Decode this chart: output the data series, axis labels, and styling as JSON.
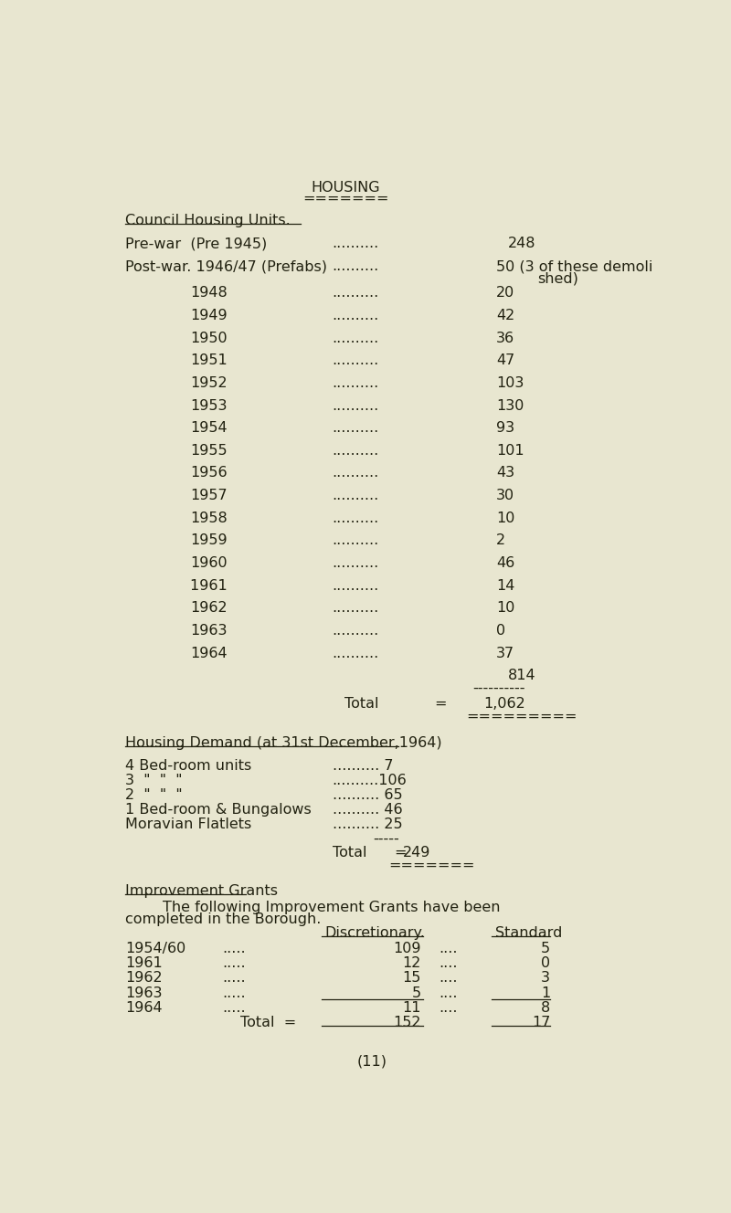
{
  "bg_color": "#e8e6d0",
  "text_color": "#222211",
  "font_family": "Courier New",
  "title": "HOUSING",
  "title_underline": "=======",
  "section1_header": "Council Housing Units.",
  "prewar_label": "Pre-war  (Pre 1945)",
  "prewar_dots": "..........",
  "prewar_value": "248",
  "postwar_label": "Post-war. 1946/47 (Prefabs)",
  "postwar_dots": "..........",
  "postwar_value": "50 (3 of these demoli",
  "postwar_cont": "shed)",
  "years": [
    "1948",
    "1949",
    "1950",
    "1951",
    "1952",
    "1953",
    "1954",
    "1955",
    "1956",
    "1957",
    "1958",
    "1959",
    "1960",
    "1961 ",
    "1962",
    "1963",
    "1964"
  ],
  "year_values": [
    "20",
    "42",
    "36",
    "47",
    "103",
    "130",
    "93",
    "101",
    "43",
    "30",
    "10",
    "2",
    "46",
    "14",
    "10",
    "0",
    "37"
  ],
  "subtotal": "814",
  "total_value": "1,062",
  "total_underline": "=========",
  "section2_header": "Housing Demand (at 31st December,1964)",
  "demand_labels": [
    "4 Bed-room units",
    "3  \"  \"  \"",
    "2  \"  \"  \"",
    "1 Bed-room & Bungalows",
    "Moravian Flatlets"
  ],
  "demand_dots": [
    "..........",
    "..........",
    "..........",
    "..........",
    ".........."
  ],
  "demand_values": [
    "7",
    "106",
    "65",
    "46",
    "25"
  ],
  "demand_total": "249",
  "demand_underline": "=======",
  "section3_header": "Improvement Grants",
  "section3_intro1": "        The following Improvement Grants have been",
  "section3_intro2": "completed in the Borough.",
  "ig_col1": "Discretionary.",
  "ig_col2": "Standard",
  "ig_years": [
    "1954/60",
    "1961",
    "1962",
    "1963",
    "1964"
  ],
  "ig_dots5": ".....",
  "ig_dots4": "....",
  "ig_disc": [
    "109",
    "12",
    "15",
    "5",
    "11"
  ],
  "ig_std": [
    "5",
    "0",
    "3",
    "1",
    "8"
  ],
  "ig_total_disc": "152",
  "ig_total_std": "17",
  "page_number": "(11)"
}
